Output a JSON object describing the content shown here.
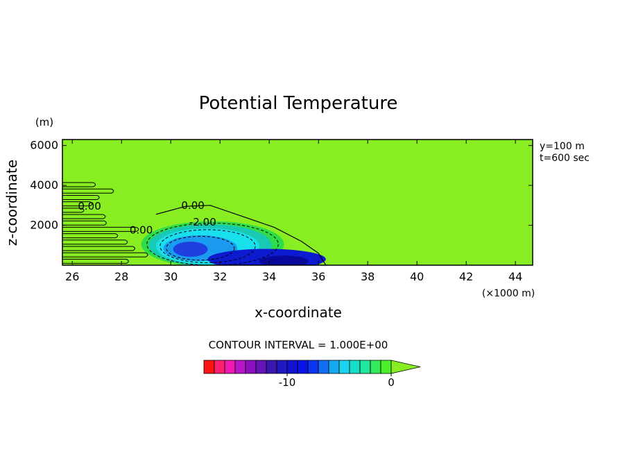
{
  "chart_data": {
    "type": "heatmap",
    "title": "Potential Temperature",
    "xlabel": "x-coordinate",
    "ylabel": "z-coordinate",
    "x_unit": "(×1000 m)",
    "y_unit": "(m)",
    "xlim": [
      25.6,
      44.7
    ],
    "ylim": [
      0,
      6300
    ],
    "x_ticks": [
      26,
      28,
      30,
      32,
      34,
      36,
      38,
      40,
      42,
      44
    ],
    "y_ticks": [
      2000,
      4000,
      6000
    ],
    "info": [
      "y=100 m",
      "t=600 sec"
    ],
    "contour_labels": [
      {
        "text": "0.00",
        "x": 26.7,
        "z": 2950
      },
      {
        "text": "0.00",
        "x": 30.9,
        "z": 3000
      },
      {
        "text": "-2.00",
        "x": 31.3,
        "z": 2150
      },
      {
        "text": "0.00",
        "x": 28.8,
        "z": 1750
      }
    ],
    "cold_pool": [
      {
        "level": -1,
        "color": "#2fdc4a",
        "x": 31.7,
        "z": 1050,
        "rx": 2.9,
        "rz": 1150
      },
      {
        "level": -2,
        "color": "#19c9b4",
        "x": 31.6,
        "z": 1000,
        "rx": 2.5,
        "rz": 1050
      },
      {
        "level": -3,
        "color": "#1ae0ee",
        "x": 31.5,
        "z": 950,
        "rx": 2.1,
        "rz": 900
      },
      {
        "level": -4,
        "color": "#1a9bf0",
        "x": 31.2,
        "z": 850,
        "rx": 1.5,
        "rz": 650
      },
      {
        "level": -6,
        "color": "#1f3fe0",
        "x": 30.8,
        "z": 800,
        "rx": 0.7,
        "rz": 380
      },
      {
        "level": -7,
        "color": "#0d1bd0",
        "x": 33.9,
        "z": 300,
        "rx": 2.4,
        "rz": 520
      },
      {
        "level": -9,
        "color": "#08089a",
        "x": 34.6,
        "z": 200,
        "rx": 1.0,
        "rz": 280
      }
    ],
    "solid_contour_x": [
      29.4,
      30.6,
      31.6,
      32.9,
      34.2,
      35.3,
      36.0,
      36.3
    ],
    "solid_contour_z": [
      2550,
      2950,
      3000,
      2450,
      1900,
      1200,
      600,
      0
    ],
    "colorbar": {
      "label": "CONTOUR INTERVAL = 1.000E+00",
      "colors": [
        "#ff1414",
        "#ff1e6e",
        "#ee18b4",
        "#b814c8",
        "#8c10c0",
        "#6414b4",
        "#3c14b0",
        "#2218c0",
        "#1212d2",
        "#0a14e6",
        "#0a36f0",
        "#1070f0",
        "#16a8f0",
        "#1ad4f0",
        "#16e0c8",
        "#20e89a",
        "#34ea5c",
        "#4ef02a"
      ],
      "extend_color": "#88ee22",
      "tick_labels": [
        "-10",
        "0"
      ],
      "tick_values": [
        -10,
        0
      ],
      "vmin": -18,
      "vmax": 0
    },
    "field_color": "#88ee22"
  }
}
